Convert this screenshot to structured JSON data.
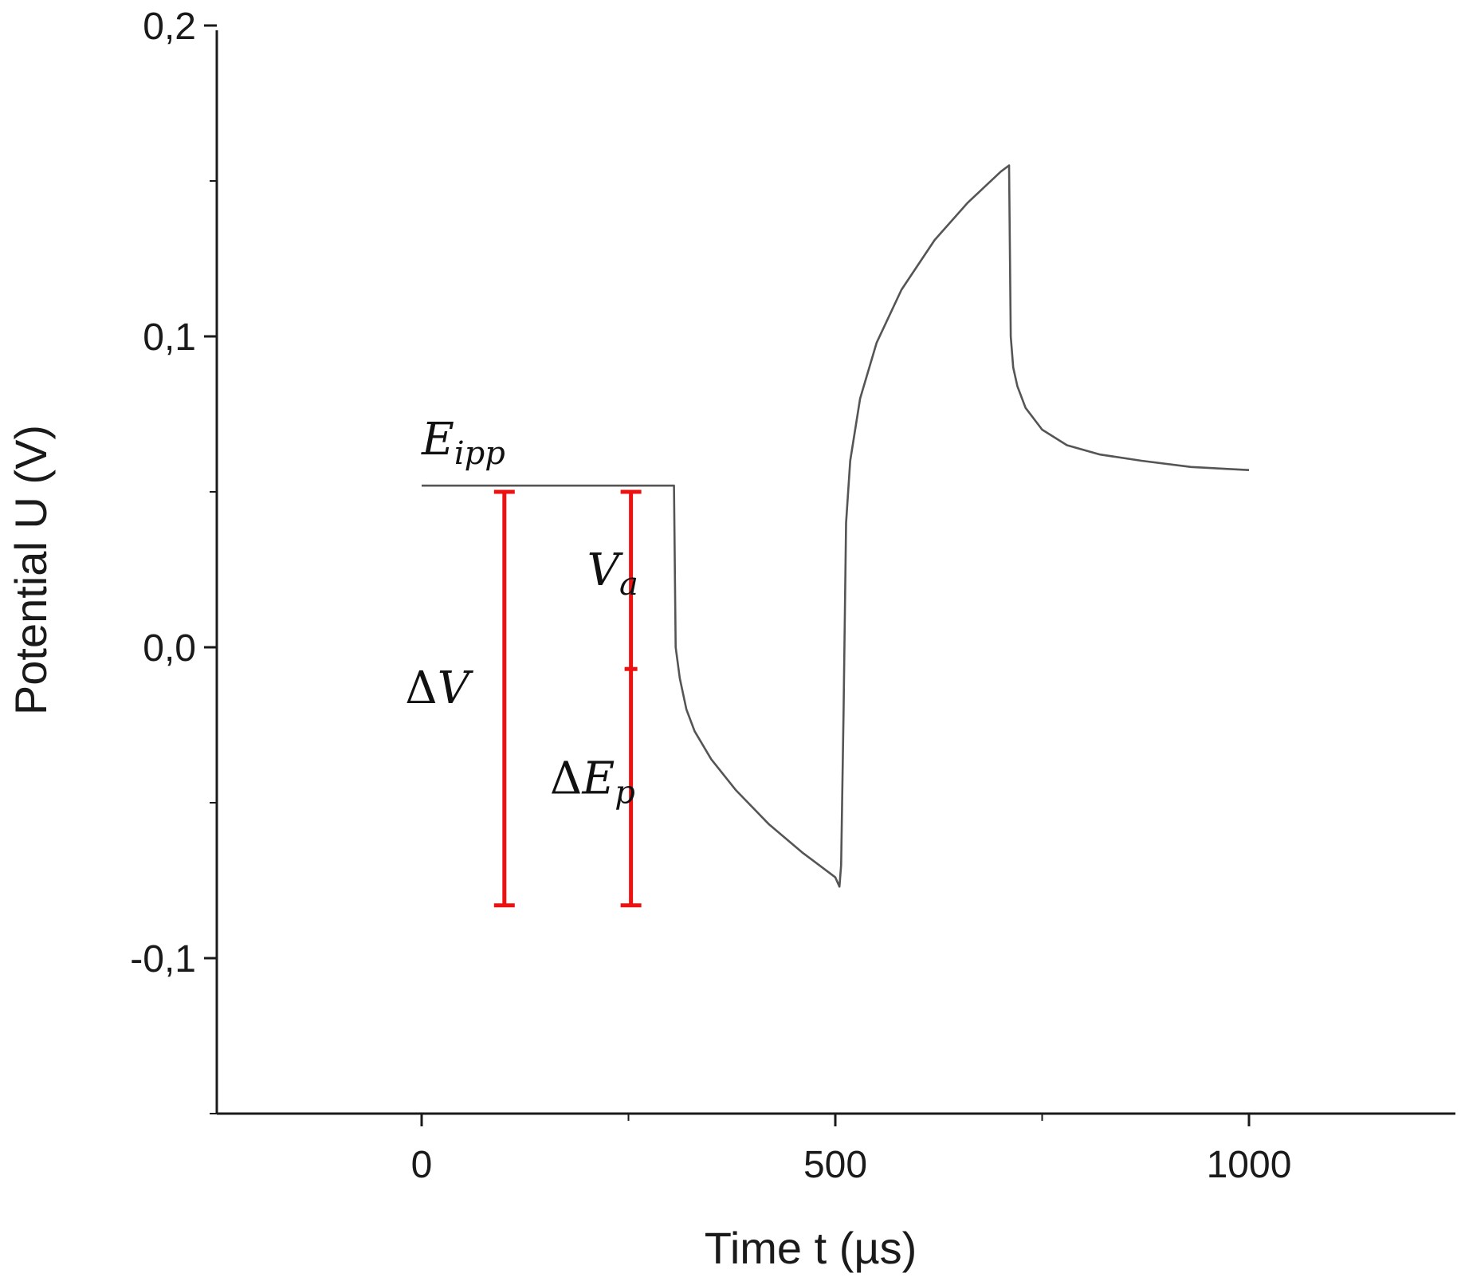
{
  "chart_data": {
    "type": "line",
    "xlabel": "Time t (µs)",
    "ylabel": "Potential U (V)",
    "xlim": [
      -250,
      1250
    ],
    "ylim": [
      -0.15,
      0.2
    ],
    "x_ticks": [
      0,
      500,
      1000
    ],
    "x_tick_labels": [
      "0",
      "500",
      "1000"
    ],
    "y_ticks": [
      -0.1,
      0.0,
      0.1,
      0.2
    ],
    "y_tick_labels": [
      "-0,1",
      "0,0",
      "0,1",
      "0,2"
    ],
    "grid": false,
    "series": [
      {
        "color": "#555555",
        "x": [
          0,
          100,
          200,
          305,
          307,
          312,
          320,
          330,
          350,
          380,
          420,
          460,
          500,
          505,
          507,
          510,
          513,
          518,
          530,
          550,
          580,
          620,
          660,
          700,
          710,
          712,
          715,
          720,
          730,
          750,
          780,
          820,
          870,
          930,
          1000
        ],
        "y": [
          0.052,
          0.052,
          0.052,
          0.052,
          0.0,
          -0.01,
          -0.02,
          -0.027,
          -0.036,
          -0.046,
          -0.057,
          -0.066,
          -0.074,
          -0.077,
          -0.07,
          -0.02,
          0.04,
          0.06,
          0.08,
          0.098,
          0.115,
          0.131,
          0.143,
          0.153,
          0.155,
          0.1,
          0.09,
          0.084,
          0.077,
          0.07,
          0.065,
          0.062,
          0.06,
          0.058,
          0.057
        ]
      }
    ],
    "annotations": [
      {
        "label": "E",
        "subscript": "ipp",
        "x": 0,
        "y": 0.062
      },
      {
        "label": "V",
        "subscript": "a",
        "x": 200,
        "y": 0.02
      },
      {
        "label": "ΔV",
        "subscript": "",
        "x": -20,
        "y": -0.018
      },
      {
        "label": "ΔE",
        "subscript": "p",
        "x": 155,
        "y": -0.047
      }
    ],
    "markers": [
      {
        "type": "range-bar",
        "color": "#ee1111",
        "x": 100,
        "y_top": 0.05,
        "y_bottom": -0.083
      },
      {
        "type": "range-bar",
        "color": "#ee1111",
        "x": 253,
        "y_top": 0.05,
        "y_bottom": -0.083,
        "y_mid": -0.007
      }
    ]
  }
}
